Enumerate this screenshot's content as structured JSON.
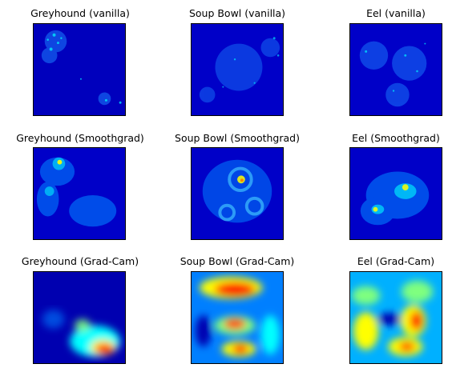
{
  "figure": {
    "panels": [
      {
        "title": "Greyhound (vanilla)",
        "style": "vanilla"
      },
      {
        "title": "Soup Bowl (vanilla)",
        "style": "vanilla"
      },
      {
        "title": "Eel (vanilla)",
        "style": "vanilla"
      },
      {
        "title": "Greyhound (Smoothgrad)",
        "style": "smoothgrad"
      },
      {
        "title": "Soup Bowl (Smoothgrad)",
        "style": "smoothgrad"
      },
      {
        "title": "Eel (Smoothgrad)",
        "style": "smoothgrad"
      },
      {
        "title": "Greyhound (Grad-Cam)",
        "style": "gradcam"
      },
      {
        "title": "Soup Bowl (Grad-Cam)",
        "style": "gradcam"
      },
      {
        "title": "Eel (Grad-Cam)",
        "style": "gradcam"
      }
    ],
    "colormap": [
      "#00007f",
      "#0000ff",
      "#007fff",
      "#00ffff",
      "#7fff7f",
      "#ffff00",
      "#ff7f00",
      "#ff0000",
      "#7f0000"
    ]
  }
}
